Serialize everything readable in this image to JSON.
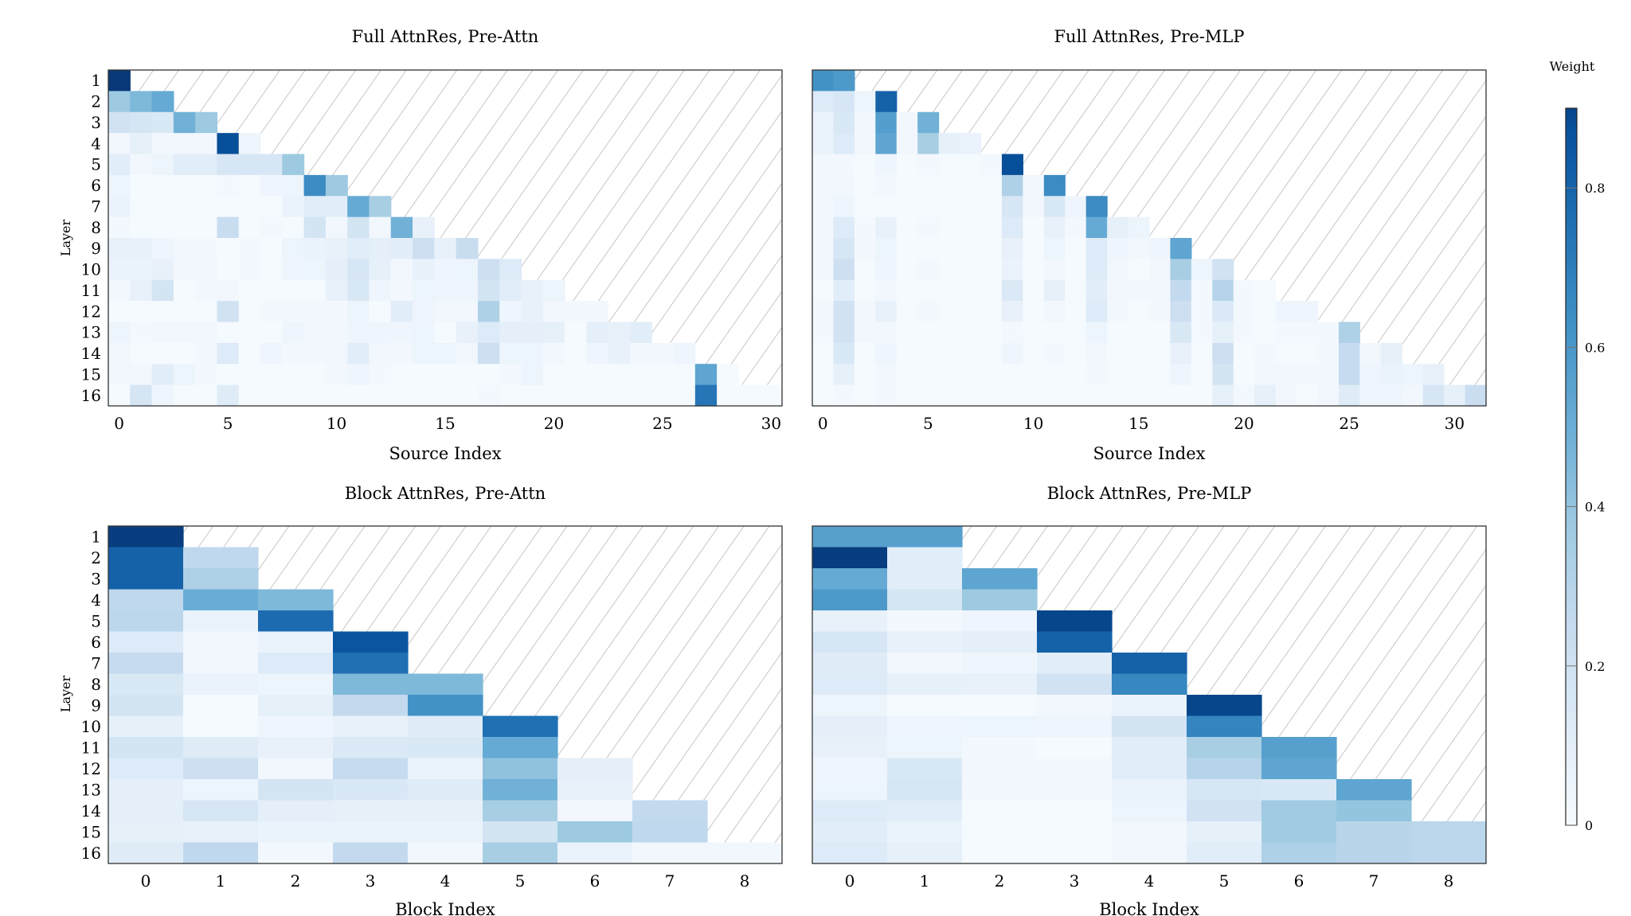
{
  "chart_data": {
    "type": "heatmap",
    "colormap": "Blues",
    "colorbar": {
      "label": "Weight",
      "range": [
        0,
        0.9
      ],
      "ticks": [
        0,
        0.2,
        0.4,
        0.6,
        0.8
      ],
      "tick_labels": [
        "0",
        "0.2",
        "0.4",
        "0.6",
        "0.8"
      ]
    },
    "masked_region": "hatched (upper-right, no data)",
    "panels": [
      {
        "title": "Full AttnRes, Pre-Attn",
        "xlabel": "Source Index",
        "ylabel": "Layer",
        "xlim": [
          0,
          31
        ],
        "xticks": [
          0,
          5,
          10,
          15,
          20,
          25,
          30
        ],
        "row_labels": [
          "1",
          "2",
          "3",
          "4",
          "5",
          "6",
          "7",
          "8",
          "9",
          "10",
          "11",
          "12",
          "13",
          "14",
          "15",
          "16"
        ],
        "rows": [
          [
            0.9
          ],
          [
            0.35,
            0.42,
            0.48
          ],
          [
            0.18,
            0.16,
            0.14,
            0.45,
            0.35
          ],
          [
            0.03,
            0.08,
            0.03,
            0.03,
            0.03,
            0.82,
            0.04
          ],
          [
            0.1,
            0.03,
            0.05,
            0.1,
            0.1,
            0.15,
            0.15,
            0.15,
            0.35
          ],
          [
            0.05,
            0.01,
            0.01,
            0.01,
            0.01,
            0.02,
            0.01,
            0.04,
            0.05,
            0.6,
            0.35
          ],
          [
            0.06,
            0.01,
            0.01,
            0.01,
            0.01,
            0.01,
            0.01,
            0.01,
            0.06,
            0.1,
            0.1,
            0.48,
            0.32
          ],
          [
            0.02,
            0.01,
            0.01,
            0.01,
            0.01,
            0.22,
            0.01,
            0.02,
            0.01,
            0.17,
            0.03,
            0.17,
            0.03,
            0.45,
            0.07
          ],
          [
            0.07,
            0.07,
            0.04,
            0.02,
            0.02,
            0.01,
            0.02,
            0.01,
            0.05,
            0.06,
            0.07,
            0.1,
            0.09,
            0.1,
            0.2,
            0.07,
            0.22
          ],
          [
            0.06,
            0.06,
            0.07,
            0.03,
            0.03,
            0.01,
            0.02,
            0.01,
            0.04,
            0.05,
            0.09,
            0.15,
            0.08,
            0.03,
            0.07,
            0.04,
            0.05,
            0.2,
            0.12
          ],
          [
            0.03,
            0.07,
            0.17,
            0.01,
            0.02,
            0.03,
            0.01,
            0.01,
            0.01,
            0.01,
            0.07,
            0.14,
            0.04,
            0.02,
            0.05,
            0.04,
            0.04,
            0.17,
            0.1,
            0.07,
            0.05
          ],
          [
            0.01,
            0.01,
            0.01,
            0.01,
            0.01,
            0.18,
            0.01,
            0.02,
            0.02,
            0.02,
            0.02,
            0.05,
            0.01,
            0.1,
            0.04,
            0.03,
            0.03,
            0.3,
            0.04,
            0.07,
            0.03,
            0.02,
            0.02
          ],
          [
            0.05,
            0.02,
            0.03,
            0.03,
            0.03,
            0.01,
            0.01,
            0.01,
            0.04,
            0.02,
            0.02,
            0.04,
            0.04,
            0.04,
            0.05,
            0.01,
            0.07,
            0.12,
            0.09,
            0.09,
            0.08,
            0.01,
            0.09,
            0.07,
            0.1
          ],
          [
            0.03,
            0.01,
            0.01,
            0.01,
            0.02,
            0.12,
            0.01,
            0.04,
            0.02,
            0.02,
            0.03,
            0.1,
            0.03,
            0.02,
            0.05,
            0.05,
            0.03,
            0.2,
            0.05,
            0.05,
            0.03,
            0.01,
            0.04,
            0.07,
            0.02,
            0.02,
            0.04
          ],
          [
            0.03,
            0.03,
            0.1,
            0.05,
            0.02,
            0.01,
            0.01,
            0.01,
            0.01,
            0.01,
            0.02,
            0.04,
            0.02,
            0.01,
            0.01,
            0.01,
            0.01,
            0.01,
            0.02,
            0.05,
            0.01,
            0.01,
            0.01,
            0.01,
            0.01,
            0.01,
            0.01,
            0.5,
            0.01
          ],
          [
            0.01,
            0.16,
            0.04,
            0.01,
            0.01,
            0.11,
            0.01,
            0.01,
            0.01,
            0.01,
            0.01,
            0.01,
            0.01,
            0.01,
            0.01,
            0.01,
            0.01,
            0.02,
            0.01,
            0.01,
            0.01,
            0.01,
            0.01,
            0.01,
            0.01,
            0.01,
            0.01,
            0.68,
            0.01,
            0.01,
            0.01
          ]
        ]
      },
      {
        "title": "Full AttnRes, Pre-MLP",
        "xlabel": "Source Index",
        "ylabel": "",
        "xlim": [
          0,
          32
        ],
        "xticks": [
          0,
          5,
          10,
          15,
          20,
          25,
          30
        ],
        "row_labels": [],
        "rows": [
          [
            0.58,
            0.55
          ],
          [
            0.12,
            0.15,
            0.05,
            0.75
          ],
          [
            0.06,
            0.14,
            0.03,
            0.53,
            0.03,
            0.45
          ],
          [
            0.06,
            0.12,
            0.03,
            0.5,
            0.03,
            0.32,
            0.08,
            0.06
          ],
          [
            0.02,
            0.02,
            0.01,
            0.04,
            0.01,
            0.02,
            0.01,
            0.01,
            0.02,
            0.82
          ],
          [
            0.02,
            0.03,
            0.01,
            0.02,
            0.01,
            0.01,
            0.01,
            0.01,
            0.01,
            0.3,
            0.03,
            0.6
          ],
          [
            0.02,
            0.04,
            0.01,
            0.01,
            0.01,
            0.01,
            0.01,
            0.01,
            0.01,
            0.15,
            0.03,
            0.14,
            0.04,
            0.6
          ],
          [
            0.02,
            0.12,
            0.02,
            0.07,
            0.01,
            0.02,
            0.01,
            0.01,
            0.01,
            0.12,
            0.01,
            0.07,
            0.02,
            0.48,
            0.08,
            0.05
          ],
          [
            0.02,
            0.15,
            0.02,
            0.05,
            0.01,
            0.01,
            0.01,
            0.01,
            0.01,
            0.07,
            0.01,
            0.05,
            0.01,
            0.12,
            0.04,
            0.03,
            0.04,
            0.5
          ],
          [
            0.02,
            0.2,
            0.01,
            0.04,
            0.01,
            0.02,
            0.01,
            0.01,
            0.01,
            0.06,
            0.01,
            0.03,
            0.01,
            0.12,
            0.03,
            0.01,
            0.03,
            0.32,
            0.05,
            0.18
          ],
          [
            0.01,
            0.1,
            0.01,
            0.03,
            0.01,
            0.01,
            0.01,
            0.01,
            0.01,
            0.13,
            0.01,
            0.08,
            0.01,
            0.1,
            0.03,
            0.02,
            0.02,
            0.24,
            0.02,
            0.28,
            0.02,
            0.01
          ],
          [
            0.02,
            0.18,
            0.02,
            0.07,
            0.01,
            0.02,
            0.01,
            0.01,
            0.01,
            0.07,
            0.01,
            0.03,
            0.01,
            0.12,
            0.02,
            0.01,
            0.02,
            0.2,
            0.02,
            0.13,
            0.02,
            0.01,
            0.04,
            0.04
          ],
          [
            0.02,
            0.18,
            0.03,
            0.03,
            0.01,
            0.01,
            0.01,
            0.01,
            0.01,
            0.02,
            0.01,
            0.01,
            0.01,
            0.05,
            0.01,
            0.01,
            0.01,
            0.14,
            0.02,
            0.08,
            0.02,
            0.01,
            0.02,
            0.02,
            0.02,
            0.3
          ],
          [
            0.01,
            0.14,
            0.01,
            0.04,
            0.01,
            0.01,
            0.01,
            0.01,
            0.01,
            0.04,
            0.01,
            0.02,
            0.01,
            0.03,
            0.01,
            0.01,
            0.01,
            0.07,
            0.01,
            0.2,
            0.01,
            0.02,
            0.01,
            0.01,
            0.02,
            0.23,
            0.03,
            0.08
          ],
          [
            0.01,
            0.08,
            0.01,
            0.03,
            0.01,
            0.01,
            0.01,
            0.01,
            0.01,
            0.01,
            0.01,
            0.01,
            0.01,
            0.02,
            0.01,
            0.01,
            0.01,
            0.04,
            0.01,
            0.17,
            0.01,
            0.03,
            0.03,
            0.02,
            0.02,
            0.23,
            0.04,
            0.06,
            0.05,
            0.07
          ],
          [
            0.01,
            0.02,
            0.01,
            0.02,
            0.01,
            0.01,
            0.01,
            0.01,
            0.01,
            0.01,
            0.01,
            0.01,
            0.01,
            0.01,
            0.01,
            0.01,
            0.01,
            0.01,
            0.01,
            0.08,
            0.02,
            0.08,
            0.03,
            0.01,
            0.03,
            0.11,
            0.04,
            0.04,
            0.03,
            0.15,
            0.08,
            0.21
          ]
        ]
      },
      {
        "title": "Block AttnRes, Pre-Attn",
        "xlabel": "Block Index",
        "ylabel": "Layer",
        "xlim": [
          0,
          9
        ],
        "xticks": [
          0,
          1,
          2,
          3,
          4,
          5,
          6,
          7,
          8
        ],
        "row_labels": [
          "1",
          "2",
          "3",
          "4",
          "5",
          "6",
          "7",
          "8",
          "9",
          "10",
          "11",
          "12",
          "13",
          "14",
          "15",
          "16"
        ],
        "rows": [
          [
            0.88
          ],
          [
            0.75,
            0.25
          ],
          [
            0.75,
            0.3
          ],
          [
            0.25,
            0.47,
            0.42
          ],
          [
            0.26,
            0.06,
            0.72
          ],
          [
            0.12,
            0.03,
            0.06,
            0.8
          ],
          [
            0.23,
            0.03,
            0.12,
            0.7
          ],
          [
            0.14,
            0.06,
            0.05,
            0.42,
            0.42
          ],
          [
            0.17,
            0.01,
            0.08,
            0.24,
            0.58
          ],
          [
            0.08,
            0.01,
            0.04,
            0.07,
            0.11,
            0.7
          ],
          [
            0.17,
            0.11,
            0.07,
            0.13,
            0.14,
            0.48
          ],
          [
            0.12,
            0.2,
            0.03,
            0.23,
            0.06,
            0.38,
            0.09
          ],
          [
            0.09,
            0.05,
            0.17,
            0.14,
            0.11,
            0.45,
            0.07
          ],
          [
            0.09,
            0.15,
            0.09,
            0.08,
            0.08,
            0.32,
            0.03,
            0.24
          ],
          [
            0.08,
            0.07,
            0.06,
            0.06,
            0.06,
            0.17,
            0.35,
            0.25
          ],
          [
            0.11,
            0.25,
            0.02,
            0.24,
            0.03,
            0.32,
            0.06,
            0.03,
            0.03
          ]
        ]
      },
      {
        "title": "Block AttnRes, Pre-MLP",
        "xlabel": "Block Index",
        "ylabel": "",
        "xlim": [
          0,
          9
        ],
        "xticks": [
          0,
          1,
          2,
          3,
          4,
          5,
          6,
          7,
          8
        ],
        "row_labels": [],
        "rows": [
          [
            0.52,
            0.52
          ],
          [
            0.88,
            0.1
          ],
          [
            0.48,
            0.1,
            0.5
          ],
          [
            0.55,
            0.16,
            0.35
          ],
          [
            0.07,
            0.02,
            0.04,
            0.85
          ],
          [
            0.15,
            0.07,
            0.09,
            0.75
          ],
          [
            0.11,
            0.03,
            0.04,
            0.1,
            0.75
          ],
          [
            0.12,
            0.08,
            0.07,
            0.18,
            0.62
          ],
          [
            0.05,
            0.01,
            0.01,
            0.02,
            0.06,
            0.85
          ],
          [
            0.09,
            0.04,
            0.05,
            0.04,
            0.17,
            0.63
          ],
          [
            0.07,
            0.05,
            0.02,
            0.01,
            0.1,
            0.32,
            0.52
          ],
          [
            0.04,
            0.14,
            0.03,
            0.02,
            0.1,
            0.28,
            0.5
          ],
          [
            0.05,
            0.15,
            0.02,
            0.02,
            0.06,
            0.15,
            0.14,
            0.5
          ],
          [
            0.12,
            0.1,
            0.01,
            0.01,
            0.05,
            0.18,
            0.34,
            0.37
          ],
          [
            0.1,
            0.06,
            0.01,
            0.01,
            0.03,
            0.08,
            0.34,
            0.27,
            0.26
          ],
          [
            0.12,
            0.08,
            0.01,
            0.01,
            0.03,
            0.1,
            0.3,
            0.27,
            0.26
          ]
        ]
      }
    ]
  }
}
